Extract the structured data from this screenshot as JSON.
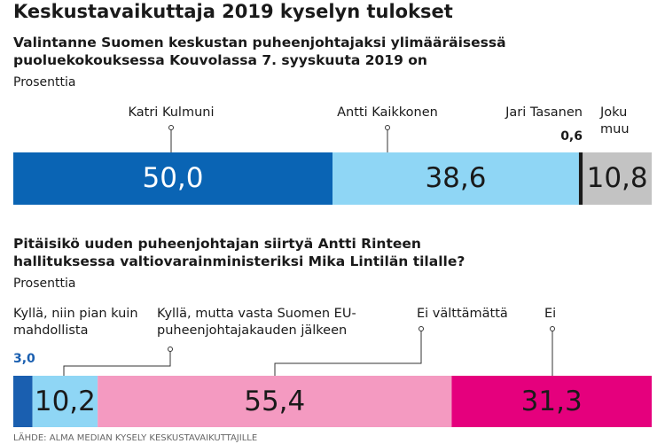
{
  "title": "Keskustavaikuttaja 2019 kyselyn tulokset",
  "source": "LÄHDE: ALMA MEDIAN KYSELY KESKUSTAVAIKUTTAJILLE",
  "chart_data": [
    {
      "type": "stacked_bar",
      "title": "Valintanne Suomen keskustan puheenjohtajaksi ylimääräisessä puoluekokouksessa Kouvolassa 7. syyskuuta 2019 on",
      "subtitle": "Prosenttia",
      "categories": [
        "Katri Kulmuni",
        "Antti Kaikkonen",
        "Jari Tasanen",
        "Joku muu"
      ],
      "values": [
        50.0,
        38.6,
        0.6,
        10.8
      ],
      "value_labels": [
        "50,0",
        "38,6",
        "0,6",
        "10,8"
      ],
      "colors": [
        "#0a64b4",
        "#8fd6f5",
        "#1a1a1a",
        "#c3c3c3"
      ]
    },
    {
      "type": "stacked_bar",
      "title": "Pitäisikö uuden puheenjohtajan siirtyä Antti Rinteen hallituksessa valtiovarainministeriksi Mika Lintilän tilalle?",
      "subtitle": "Prosenttia",
      "categories": [
        "Kyllä, niin pian kuin mahdollista",
        "Kyllä, mutta vasta Suomen EU-puheenjohtajakauden jälkeen",
        "Ei välttämättä",
        "Ei"
      ],
      "values": [
        3.0,
        10.2,
        55.4,
        31.3
      ],
      "value_labels": [
        "3,0",
        "10,2",
        "55,4",
        "31,3"
      ],
      "colors": [
        "#1a5fb0",
        "#8fd6f5",
        "#f49ac1",
        "#e5007d"
      ]
    }
  ]
}
